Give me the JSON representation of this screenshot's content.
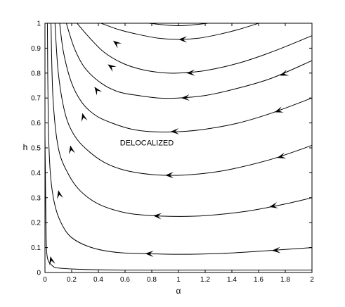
{
  "chart_data": {
    "type": "line",
    "title": "",
    "xlabel": "α",
    "ylabel": "h",
    "xlim": [
      0,
      2
    ],
    "ylim": [
      0,
      1
    ],
    "grid": false,
    "xticks": [
      "0",
      "0.2",
      "0.4",
      "0.6",
      "0.8",
      "1",
      "1.2",
      "1.4",
      "1.6",
      "1.8",
      "2"
    ],
    "yticks": [
      "0",
      "0.1",
      "0.2",
      "0.3",
      "0.4",
      "0.5",
      "0.6",
      "0.7",
      "0.8",
      "0.9",
      "1"
    ],
    "annotations": [
      {
        "text": "DELOCALIZED",
        "x": 0.92,
        "y": 0.51
      }
    ],
    "series": [
      {
        "points": [
          [
            0.0,
            0.55
          ],
          [
            0.005,
            0.3
          ],
          [
            0.01,
            0.12
          ],
          [
            0.02,
            0.055
          ],
          [
            0.05,
            0.03
          ],
          [
            0.1,
            0.018
          ],
          [
            0.3,
            0.012
          ],
          [
            0.6,
            0.01
          ],
          [
            1.0,
            0.01
          ],
          [
            1.5,
            0.01
          ],
          [
            2.0,
            0.01
          ]
        ],
        "arrows": [
          [
            0.04,
            0.065,
            0.2,
            0.06
          ]
        ]
      },
      {
        "points": [
          [
            0.018,
            1.0
          ],
          [
            0.025,
            0.6
          ],
          [
            0.04,
            0.4
          ],
          [
            0.07,
            0.28
          ],
          [
            0.12,
            0.2
          ],
          [
            0.2,
            0.14
          ],
          [
            0.35,
            0.1
          ],
          [
            0.55,
            0.08
          ],
          [
            0.8,
            0.075
          ],
          [
            1.0,
            0.073
          ],
          [
            1.3,
            0.076
          ],
          [
            1.6,
            0.085
          ],
          [
            2.0,
            0.1
          ]
        ],
        "arrows": [
          [
            0.1,
            0.33,
            1.2,
            0.06
          ],
          [
            0.75,
            0.076,
            0.0,
            0.07
          ],
          [
            1.7,
            0.088,
            0.0,
            0.07
          ]
        ]
      },
      {
        "points": [
          [
            0.045,
            1.0
          ],
          [
            0.06,
            0.7
          ],
          [
            0.1,
            0.5
          ],
          [
            0.17,
            0.4
          ],
          [
            0.26,
            0.33
          ],
          [
            0.4,
            0.275
          ],
          [
            0.6,
            0.24
          ],
          [
            0.8,
            0.228
          ],
          [
            1.0,
            0.225
          ],
          [
            1.2,
            0.228
          ],
          [
            1.5,
            0.245
          ],
          [
            1.8,
            0.275
          ],
          [
            2.0,
            0.3
          ]
        ],
        "arrows": [
          [
            0.19,
            0.51,
            1.05,
            0.065
          ],
          [
            0.81,
            0.228,
            0.0,
            0.07
          ],
          [
            1.68,
            0.263,
            0.25,
            0.07
          ]
        ]
      },
      {
        "points": [
          [
            0.075,
            1.0
          ],
          [
            0.1,
            0.8
          ],
          [
            0.15,
            0.64
          ],
          [
            0.22,
            0.55
          ],
          [
            0.32,
            0.49
          ],
          [
            0.45,
            0.44
          ],
          [
            0.6,
            0.41
          ],
          [
            0.8,
            0.393
          ],
          [
            1.0,
            0.39
          ],
          [
            1.2,
            0.398
          ],
          [
            1.4,
            0.415
          ],
          [
            1.7,
            0.455
          ],
          [
            2.0,
            0.51
          ]
        ],
        "arrows": [
          [
            0.28,
            0.64,
            1.0,
            0.065
          ],
          [
            0.9,
            0.39,
            0.0,
            0.07
          ],
          [
            1.74,
            0.46,
            0.35,
            0.07
          ]
        ]
      },
      {
        "points": [
          [
            0.11,
            1.0
          ],
          [
            0.14,
            0.88
          ],
          [
            0.2,
            0.76
          ],
          [
            0.28,
            0.68
          ],
          [
            0.38,
            0.63
          ],
          [
            0.5,
            0.6
          ],
          [
            0.65,
            0.575
          ],
          [
            0.8,
            0.565
          ],
          [
            1.0,
            0.565
          ],
          [
            1.2,
            0.575
          ],
          [
            1.45,
            0.6
          ],
          [
            1.7,
            0.64
          ],
          [
            2.0,
            0.7
          ]
        ],
        "arrows": [
          [
            0.37,
            0.745,
            0.95,
            0.065
          ],
          [
            0.94,
            0.565,
            0.0,
            0.07
          ],
          [
            1.72,
            0.643,
            0.42,
            0.07
          ]
        ]
      },
      {
        "points": [
          [
            0.16,
            1.0
          ],
          [
            0.22,
            0.9
          ],
          [
            0.3,
            0.82
          ],
          [
            0.42,
            0.76
          ],
          [
            0.55,
            0.725
          ],
          [
            0.7,
            0.71
          ],
          [
            0.85,
            0.7
          ],
          [
            1.0,
            0.7
          ],
          [
            1.2,
            0.71
          ],
          [
            1.45,
            0.74
          ],
          [
            1.7,
            0.78
          ],
          [
            2.0,
            0.85
          ]
        ],
        "arrows": [
          [
            0.47,
            0.835,
            0.8,
            0.065
          ],
          [
            1.02,
            0.7,
            0.0,
            0.07
          ],
          [
            1.76,
            0.79,
            0.45,
            0.07
          ]
        ]
      },
      {
        "points": [
          [
            0.24,
            1.0
          ],
          [
            0.32,
            0.95
          ],
          [
            0.44,
            0.885
          ],
          [
            0.58,
            0.84
          ],
          [
            0.72,
            0.815
          ],
          [
            0.87,
            0.802
          ],
          [
            1.0,
            0.8
          ],
          [
            1.2,
            0.81
          ],
          [
            1.45,
            0.84
          ],
          [
            1.7,
            0.885
          ],
          [
            2.0,
            0.95
          ]
        ],
        "arrows": [
          [
            0.51,
            0.93,
            0.7,
            0.065
          ],
          [
            1.06,
            0.8,
            0.0,
            0.07
          ]
        ]
      },
      {
        "points": [
          [
            0.42,
            1.0
          ],
          [
            0.55,
            0.975
          ],
          [
            0.7,
            0.955
          ],
          [
            0.85,
            0.94
          ],
          [
            1.0,
            0.935
          ],
          [
            1.15,
            0.94
          ],
          [
            1.3,
            0.955
          ],
          [
            1.45,
            0.975
          ],
          [
            1.6,
            1.0
          ]
        ],
        "arrows": [
          [
            1.0,
            0.935,
            0.0,
            0.07
          ]
        ]
      },
      {
        "points": [
          [
            0.78,
            1.0
          ],
          [
            0.9,
            0.993
          ],
          [
            1.0,
            0.99
          ],
          [
            1.1,
            0.993
          ],
          [
            1.22,
            1.0
          ]
        ],
        "arrows": []
      }
    ]
  }
}
